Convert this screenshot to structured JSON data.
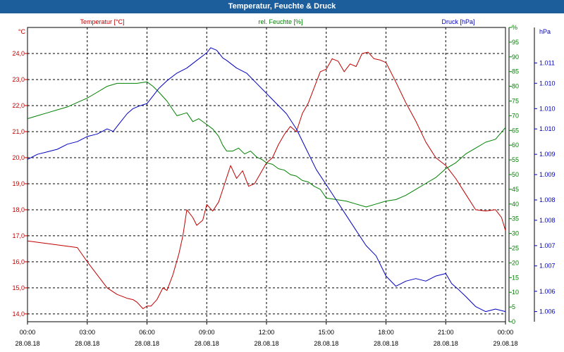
{
  "window": {
    "title": "Temperatur, Feuchte & Druck"
  },
  "chart_data": {
    "type": "line",
    "title": "Temperatur, Feuchte & Druck",
    "x_ticks": [
      {
        "time": "00:00",
        "date": "28.08.18"
      },
      {
        "time": "03:00",
        "date": "28.08.18"
      },
      {
        "time": "06:00",
        "date": "28.08.18"
      },
      {
        "time": "09:00",
        "date": "28.08.18"
      },
      {
        "time": "12:00",
        "date": "28.08.18"
      },
      {
        "time": "15:00",
        "date": "28.08.18"
      },
      {
        "time": "18:00",
        "date": "28.08.18"
      },
      {
        "time": "21:00",
        "date": "28.08.18"
      },
      {
        "time": "00:00",
        "date": "29.08.18"
      }
    ],
    "x_range_hours": [
      0,
      24
    ],
    "grid": true,
    "axes": {
      "temperature": {
        "label": "Temperatur [°C]",
        "unit": "°C",
        "color": "#c00000",
        "range": [
          13.7,
          25.0
        ],
        "ticks": [
          {
            "v": 14.0,
            "label": "14,0"
          },
          {
            "v": 15.0,
            "label": "15,0"
          },
          {
            "v": 16.0,
            "label": "16,0"
          },
          {
            "v": 17.0,
            "label": "17,0"
          },
          {
            "v": 18.0,
            "label": "18,0"
          },
          {
            "v": 19.0,
            "label": "19,0"
          },
          {
            "v": 20.0,
            "label": "20,0"
          },
          {
            "v": 21.0,
            "label": "21,0"
          },
          {
            "v": 22.0,
            "label": "22,0"
          },
          {
            "v": 23.0,
            "label": "23,0"
          },
          {
            "v": 24.0,
            "label": "24,0"
          }
        ]
      },
      "humidity": {
        "label": "rel. Feuchte [%]",
        "unit": "%",
        "color": "#008000",
        "range": [
          0,
          100
        ],
        "ticks": [
          {
            "v": 0,
            "label": "0"
          },
          {
            "v": 5,
            "label": "5"
          },
          {
            "v": 10,
            "label": "10"
          },
          {
            "v": 15,
            "label": "15"
          },
          {
            "v": 20,
            "label": "20"
          },
          {
            "v": 25,
            "label": "25"
          },
          {
            "v": 30,
            "label": "30"
          },
          {
            "v": 35,
            "label": "35"
          },
          {
            "v": 40,
            "label": "40"
          },
          {
            "v": 45,
            "label": "45"
          },
          {
            "v": 50,
            "label": "50"
          },
          {
            "v": 55,
            "label": "55"
          },
          {
            "v": 60,
            "label": "60"
          },
          {
            "v": 65,
            "label": "65"
          },
          {
            "v": 70,
            "label": "70"
          },
          {
            "v": 75,
            "label": "75"
          },
          {
            "v": 80,
            "label": "80"
          },
          {
            "v": 85,
            "label": "85"
          },
          {
            "v": 90,
            "label": "90"
          },
          {
            "v": 95,
            "label": "95"
          },
          {
            "v": 100,
            "label": "%"
          }
        ]
      },
      "pressure": {
        "label": "Druck [hPa]",
        "unit": "hPa",
        "color": "#0000c0",
        "range": [
          1005.8,
          1011.6
        ],
        "ticks": [
          {
            "v": 1006.0,
            "label": "1.006"
          },
          {
            "v": 1006.4,
            "label": "1.006"
          },
          {
            "v": 1006.9,
            "label": "1.007"
          },
          {
            "v": 1007.3,
            "label": "1.007"
          },
          {
            "v": 1007.8,
            "label": "1.008"
          },
          {
            "v": 1008.2,
            "label": "1.008"
          },
          {
            "v": 1008.7,
            "label": "1.009"
          },
          {
            "v": 1009.1,
            "label": "1.009"
          },
          {
            "v": 1009.6,
            "label": "1.010"
          },
          {
            "v": 1010.0,
            "label": "1.010"
          },
          {
            "v": 1010.5,
            "label": "1.010"
          },
          {
            "v": 1010.9,
            "label": "1.011"
          }
        ]
      }
    },
    "series": [
      {
        "name": "Temperatur",
        "axis": "temperature",
        "color": "#c00000",
        "x": [
          0,
          1,
          2,
          2.5,
          3,
          3.5,
          4,
          4.5,
          5,
          5.3,
          5.5,
          5.8,
          6,
          6.2,
          6.5,
          6.8,
          7,
          7.3,
          7.6,
          7.8,
          8,
          8.3,
          8.5,
          8.8,
          9,
          9.3,
          9.6,
          9.9,
          10.2,
          10.5,
          10.8,
          11.1,
          11.4,
          11.7,
          12,
          12.3,
          12.6,
          12.9,
          13.2,
          13.5,
          13.8,
          14.1,
          14.4,
          14.7,
          15,
          15.3,
          15.6,
          15.9,
          16.2,
          16.5,
          16.8,
          17.1,
          17.4,
          17.7,
          18,
          18.5,
          19,
          19.5,
          20,
          20.5,
          21,
          21.5,
          22,
          22.5,
          23,
          23.5,
          23.8,
          24
        ],
        "values": [
          16.8,
          16.7,
          16.6,
          16.55,
          16.0,
          15.5,
          15.0,
          14.75,
          14.6,
          14.55,
          14.45,
          14.2,
          14.3,
          14.3,
          14.55,
          15.0,
          14.9,
          15.5,
          16.3,
          17.0,
          18.0,
          17.7,
          17.4,
          17.6,
          18.2,
          17.95,
          18.3,
          19.0,
          19.7,
          19.2,
          19.5,
          18.9,
          19.0,
          19.4,
          19.8,
          20.0,
          20.5,
          20.9,
          21.2,
          21.0,
          21.7,
          22.1,
          22.7,
          23.3,
          23.4,
          23.8,
          23.7,
          23.3,
          23.6,
          23.5,
          24.0,
          24.05,
          23.8,
          23.75,
          23.65,
          22.9,
          22.1,
          21.4,
          20.6,
          20.0,
          19.7,
          19.2,
          18.6,
          18.0,
          17.95,
          18.0,
          17.7,
          17.2
        ]
      },
      {
        "name": "rel. Feuchte",
        "axis": "humidity",
        "color": "#008000",
        "x": [
          0,
          0.5,
          1,
          1.5,
          2,
          2.5,
          3,
          3.5,
          4,
          4.5,
          5,
          5.5,
          6,
          6.3,
          6.6,
          7,
          7.5,
          8,
          8.3,
          8.6,
          9,
          9.3,
          9.6,
          9.8,
          10,
          10.3,
          10.6,
          10.9,
          11.2,
          11.5,
          11.8,
          12,
          12.3,
          12.6,
          12.9,
          13.2,
          13.5,
          13.8,
          14.1,
          14.4,
          14.7,
          15,
          15.5,
          16,
          16.5,
          17,
          17.5,
          18,
          18.5,
          19,
          19.5,
          20,
          20.5,
          21,
          21.5,
          22,
          22.5,
          23,
          23.5,
          24
        ],
        "values": [
          69,
          70,
          71,
          72,
          73,
          74.5,
          76,
          78,
          80,
          81,
          81,
          81,
          81.5,
          80,
          78,
          75,
          70,
          71,
          68,
          69,
          67,
          65.5,
          63,
          60,
          58,
          58,
          59,
          57,
          58,
          56,
          55,
          54,
          53.5,
          52,
          51.5,
          50,
          49.5,
          48,
          47.5,
          46,
          45,
          42,
          41.5,
          41,
          40,
          39,
          40,
          41,
          41.5,
          43,
          45,
          47,
          49,
          52,
          54,
          57,
          59,
          61,
          62,
          66
        ]
      },
      {
        "name": "Druck",
        "axis": "pressure",
        "color": "#0000c0",
        "x": [
          0,
          0.5,
          1,
          1.5,
          2,
          2.5,
          3,
          3.5,
          4,
          4.3,
          4.6,
          5,
          5.3,
          5.6,
          6,
          6.3,
          6.6,
          7,
          7.5,
          8,
          8.5,
          9,
          9.2,
          9.5,
          9.8,
          10,
          10.5,
          11,
          11.5,
          12,
          12.5,
          13,
          13.5,
          14,
          14.5,
          15,
          15.5,
          16,
          16.5,
          17,
          17.5,
          18,
          18.5,
          19,
          19.5,
          20,
          20.5,
          21,
          21.3,
          21.6,
          22,
          22.5,
          23,
          23.5,
          24
        ],
        "values": [
          1009.0,
          1009.1,
          1009.15,
          1009.2,
          1009.3,
          1009.35,
          1009.45,
          1009.5,
          1009.6,
          1009.55,
          1009.7,
          1009.9,
          1010.0,
          1010.05,
          1010.1,
          1010.25,
          1010.4,
          1010.55,
          1010.7,
          1010.8,
          1010.95,
          1011.1,
          1011.2,
          1011.15,
          1011.0,
          1010.95,
          1010.8,
          1010.7,
          1010.5,
          1010.3,
          1010.1,
          1009.9,
          1009.6,
          1009.2,
          1008.8,
          1008.5,
          1008.2,
          1007.9,
          1007.6,
          1007.3,
          1007.1,
          1006.7,
          1006.5,
          1006.6,
          1006.65,
          1006.6,
          1006.7,
          1006.75,
          1006.55,
          1006.45,
          1006.3,
          1006.1,
          1006.0,
          1006.05,
          1006.0
        ]
      }
    ]
  }
}
